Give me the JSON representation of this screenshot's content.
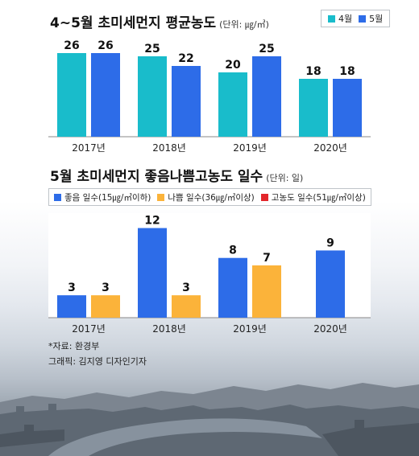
{
  "chart_data": [
    {
      "type": "bar",
      "title": "4~5월 초미세먼지 평균농도",
      "unit_note": "(단위: ㎍/㎥)",
      "categories": [
        "2017년",
        "2018년",
        "2019년",
        "2020년"
      ],
      "series": [
        {
          "name": "4월",
          "color": "#19bccb",
          "values": [
            26,
            25,
            20,
            18
          ]
        },
        {
          "name": "5월",
          "color": "#2d6ce8",
          "values": [
            26,
            22,
            25,
            18
          ]
        }
      ],
      "ylim": [
        0,
        30
      ],
      "legend": "top-right",
      "grid": false
    },
    {
      "type": "bar",
      "title": "5월 초미세먼지 좋음나쁨고농도 일수",
      "unit_note": "(단위: 일)",
      "categories": [
        "2017년",
        "2018년",
        "2019년",
        "2020년"
      ],
      "series": [
        {
          "name": "좋음 일수(15㎍/㎥이하)",
          "color": "#2d6ce8",
          "values": [
            3,
            12,
            8,
            9
          ]
        },
        {
          "name": "나쁨 일수(36㎍/㎥이상)",
          "color": "#fbb33a",
          "values": [
            3,
            3,
            7,
            null
          ]
        },
        {
          "name": "고농도 일수(51㎍/㎥이상)",
          "color": "#e3262b",
          "values": [
            null,
            null,
            null,
            null
          ]
        }
      ],
      "ylim": [
        0,
        14
      ],
      "legend": "top",
      "grid": false
    }
  ],
  "footer": {
    "source": "*자료: 환경부",
    "credit": "그래픽: 김지영 디자인기자"
  }
}
